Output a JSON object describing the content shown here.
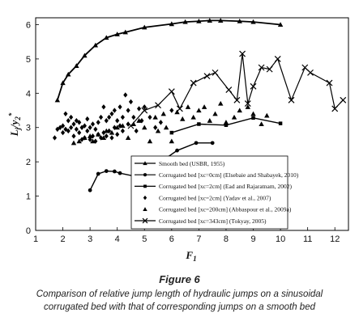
{
  "figure_label": "Figure 6",
  "caption_lines": [
    "Comparison of relative jump length of hydraulic jumps on a sinusoidal",
    "corrugated bed with that of corresponding jumps on a smooth bed"
  ],
  "chart_data": {
    "type": "scatter",
    "xlabel": "F",
    "xlabel_sub": "1",
    "ylabel": "L",
    "ylabel_sub": "j",
    "ylabel_div": "/y",
    "ylabel_sub2": "2",
    "ylabel_sup": "*",
    "xlim": [
      1,
      12.5
    ],
    "ylim": [
      0,
      6.2
    ],
    "xticks": [
      "1",
      "2",
      "3",
      "4",
      "5",
      "6",
      "7",
      "8",
      "9",
      "10",
      "11",
      "12"
    ],
    "yticks": [
      "0",
      "1",
      "2",
      "3",
      "4",
      "5",
      "6"
    ],
    "legend_position": "lower-left",
    "series": [
      {
        "name": "Smooth bed (USBR, 1955)",
        "marker": "triangle-filled",
        "line": true,
        "x": [
          1.8,
          2.0,
          2.2,
          2.5,
          2.8,
          3.2,
          3.6,
          4.0,
          4.3,
          5.0,
          6.0,
          6.5,
          7.0,
          7.4,
          7.8,
          8.5,
          9.0,
          10.0
        ],
        "y": [
          3.8,
          4.3,
          4.55,
          4.8,
          5.1,
          5.4,
          5.62,
          5.72,
          5.78,
          5.92,
          6.02,
          6.08,
          6.1,
          6.12,
          6.12,
          6.1,
          6.08,
          6.0
        ]
      },
      {
        "name": "Corrugated bed [xc=0cm] (Elsebaie and Shabayek, 2010)",
        "marker": "circle-filled",
        "line": true,
        "x": [
          3.0,
          3.3,
          3.6,
          3.9,
          4.1,
          5.0,
          5.6,
          6.2,
          6.9,
          7.5
        ],
        "y": [
          1.17,
          1.65,
          1.73,
          1.72,
          1.67,
          1.52,
          2.0,
          2.33,
          2.55,
          2.55
        ]
      },
      {
        "name": "Corrugated bed [xc=2cm] (Ead and Rajaratnam, 2002)",
        "marker": "square-filled",
        "line": true,
        "x": [
          6.0,
          7.0,
          8.0,
          9.0,
          10.0
        ],
        "y": [
          2.85,
          3.1,
          3.07,
          3.28,
          3.12
        ]
      },
      {
        "name": "Corrugated bed [xc=2cm] (Yadav et al., 2007)",
        "marker": "diamond-filled",
        "line": false,
        "x": [
          1.7,
          1.8,
          1.9,
          2.0,
          2.0,
          2.1,
          2.1,
          2.2,
          2.2,
          2.3,
          2.3,
          2.4,
          2.4,
          2.5,
          2.5,
          2.6,
          2.6,
          2.7,
          2.7,
          2.8,
          2.8,
          2.9,
          2.9,
          3.0,
          3.0,
          3.1,
          3.1,
          3.2,
          3.2,
          3.3,
          3.3,
          3.4,
          3.4,
          3.5,
          3.5,
          3.6,
          3.6,
          3.7,
          3.7,
          3.8,
          3.8,
          3.9,
          3.9,
          4.0,
          4.0,
          4.1,
          4.1,
          4.2,
          4.2,
          4.3,
          4.4,
          4.4,
          4.5,
          4.6,
          4.7,
          4.8,
          4.9,
          5.0,
          5.2,
          5.4,
          5.6,
          6.0
        ],
        "y": [
          2.7,
          2.95,
          3.0,
          2.85,
          3.05,
          2.95,
          3.4,
          2.9,
          3.2,
          3.0,
          3.3,
          2.75,
          3.1,
          2.95,
          3.2,
          2.85,
          3.15,
          2.65,
          3.0,
          2.7,
          3.05,
          2.9,
          3.25,
          2.65,
          3.0,
          2.75,
          3.1,
          2.6,
          2.95,
          2.8,
          3.15,
          2.7,
          3.3,
          2.85,
          3.6,
          2.75,
          3.2,
          2.9,
          3.3,
          2.7,
          3.4,
          3.0,
          3.5,
          2.8,
          3.2,
          3.05,
          3.6,
          2.9,
          3.3,
          3.95,
          3.1,
          3.5,
          3.75,
          3.3,
          2.9,
          3.55,
          3.2,
          3.6,
          3.3,
          3.0,
          3.15,
          3.5
        ]
      },
      {
        "name": "Corrugated bed [xc=200cm] (Abbaspour et al., 2009a)",
        "marker": "triangle-filled",
        "line": false,
        "x": [
          2.4,
          2.6,
          2.8,
          3.0,
          3.1,
          3.3,
          3.5,
          3.6,
          3.8,
          4.0,
          4.2,
          4.4,
          4.6,
          4.8,
          5.0,
          5.2,
          5.4,
          5.5,
          5.7,
          5.8,
          6.0,
          6.2,
          6.4,
          6.6,
          6.8,
          7.0,
          7.2,
          7.4,
          7.6,
          7.8,
          8.0,
          8.3,
          8.5,
          8.8,
          9.0,
          9.3,
          9.5
        ],
        "y": [
          2.55,
          2.6,
          2.7,
          2.75,
          2.6,
          2.8,
          2.7,
          2.9,
          2.85,
          3.0,
          3.05,
          2.7,
          3.1,
          3.2,
          3.0,
          2.6,
          3.3,
          2.9,
          3.4,
          3.0,
          2.6,
          3.45,
          3.25,
          3.6,
          3.3,
          3.5,
          3.6,
          3.2,
          3.4,
          3.7,
          3.15,
          3.3,
          3.5,
          3.6,
          3.4,
          3.1,
          3.35
        ]
      },
      {
        "name": "Corrugated bed [xc=343cm] (Tokyay, 2005)",
        "marker": "x",
        "line": true,
        "x": [
          4.5,
          5.0,
          5.5,
          6.0,
          6.3,
          6.8,
          7.3,
          7.6,
          8.1,
          8.4,
          8.6,
          8.8,
          9.0,
          9.3,
          9.6,
          9.9,
          10.4,
          10.9,
          11.1,
          11.8,
          12.0,
          12.3
        ],
        "y": [
          3.05,
          3.5,
          3.65,
          4.05,
          3.55,
          4.3,
          4.5,
          4.6,
          4.1,
          3.8,
          5.15,
          3.7,
          4.2,
          4.75,
          4.7,
          5.0,
          3.8,
          4.75,
          4.6,
          4.3,
          3.55,
          3.8
        ]
      }
    ]
  }
}
